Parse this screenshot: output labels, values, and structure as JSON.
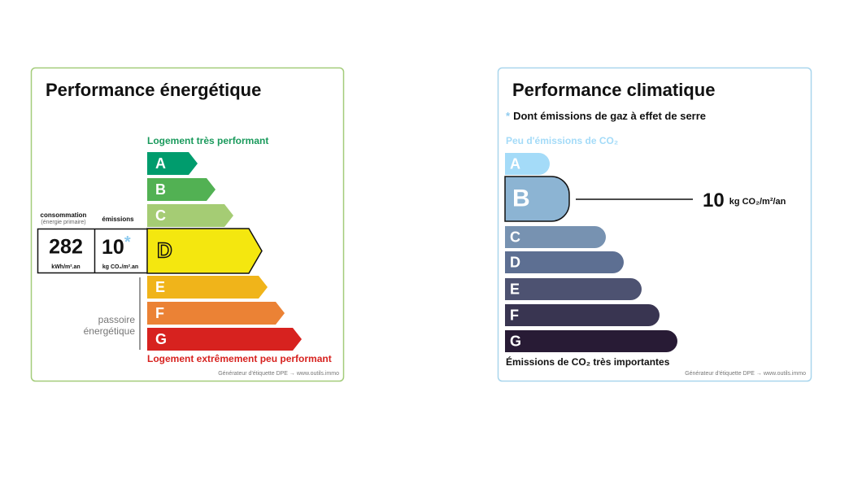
{
  "energy": {
    "title": "Performance énergétique",
    "top_label": "Logement très performant",
    "bottom_label": "Logement extrêmement peu performant",
    "consumption_label": "consommation",
    "consumption_sub": "(énergie primaire)",
    "emissions_label": "émissions",
    "consumption_value": 282,
    "consumption_unit": "kWh/m².an",
    "emissions_value": 10,
    "emissions_star": "*",
    "emissions_unit": "kg CO₂/m².an",
    "passoire": [
      "passoire",
      "énergétique"
    ],
    "classes": [
      {
        "letter": "A",
        "color": "#009c6d",
        "selected": false
      },
      {
        "letter": "B",
        "color": "#52b153",
        "selected": false
      },
      {
        "letter": "C",
        "color": "#a5cc74",
        "selected": false
      },
      {
        "letter": "D",
        "color": "#f4e70f",
        "selected": true
      },
      {
        "letter": "E",
        "color": "#f0b41a",
        "selected": false
      },
      {
        "letter": "F",
        "color": "#eb8235",
        "selected": false
      },
      {
        "letter": "G",
        "color": "#d7221f",
        "selected": false
      }
    ],
    "footer": "Générateur d'étiquette DPE → www.outils.immo"
  },
  "climate": {
    "title": "Performance climatique",
    "note_star": "*",
    "note": "Dont émissions de gaz à effet de serre",
    "top_label": "Peu d'émissions de CO₂",
    "bottom_label": "Émissions de CO₂ très importantes",
    "value": 10,
    "unit": "kg CO₂/m²/an",
    "classes": [
      {
        "letter": "A",
        "color": "#a4dbf8",
        "selected": false
      },
      {
        "letter": "B",
        "color": "#8cb4d3",
        "selected": true
      },
      {
        "letter": "C",
        "color": "#7792b1",
        "selected": false
      },
      {
        "letter": "D",
        "color": "#5d6f92",
        "selected": false
      },
      {
        "letter": "E",
        "color": "#4d5271",
        "selected": false
      },
      {
        "letter": "F",
        "color": "#393551",
        "selected": false
      },
      {
        "letter": "G",
        "color": "#281b35",
        "selected": false
      }
    ],
    "footer": "Générateur d'étiquette DPE → www.outils.immo"
  }
}
